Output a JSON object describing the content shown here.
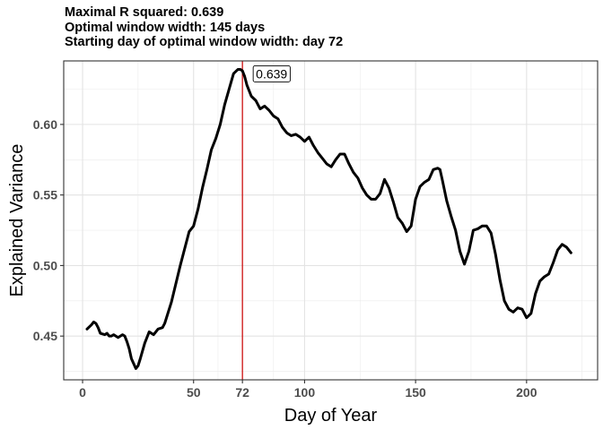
{
  "chart_data": {
    "type": "line",
    "title_lines": [
      "Maximal R squared: 0.639",
      "Optimal window width: 145 days",
      "Starting day of optimal window width:  day 72"
    ],
    "xlabel": "Day of Year",
    "ylabel": "Explained Variance",
    "xlim": [
      -8.5,
      232
    ],
    "ylim": [
      0.419,
      0.645
    ],
    "x_ticks": [
      {
        "value": 0,
        "label": "0"
      },
      {
        "value": 50,
        "label": "50"
      },
      {
        "value": 72,
        "label": "72"
      },
      {
        "value": 100,
        "label": "100"
      },
      {
        "value": 150,
        "label": "150"
      },
      {
        "value": 200,
        "label": "200"
      }
    ],
    "y_ticks": [
      {
        "value": 0.45,
        "label": "0.45"
      },
      {
        "value": 0.5,
        "label": "0.50"
      },
      {
        "value": 0.55,
        "label": "0.55"
      },
      {
        "value": 0.6,
        "label": "0.60"
      }
    ],
    "grid": true,
    "vline": {
      "x": 72,
      "color": "#cc0000"
    },
    "annotation": {
      "x": 72,
      "y": 0.639,
      "text": "0.639"
    },
    "series": [
      {
        "color": "#000000",
        "x": [
          2,
          4,
          5,
          6,
          7,
          8,
          10,
          11,
          12,
          13,
          14,
          16,
          18,
          19,
          20,
          21,
          22,
          24,
          25,
          26,
          28,
          30,
          32,
          33,
          34,
          36,
          37,
          38,
          40,
          42,
          44,
          46,
          48,
          50,
          52,
          54,
          56,
          58,
          60,
          62,
          64,
          66,
          68,
          70,
          71,
          72,
          73,
          74,
          76,
          78,
          80,
          82,
          84,
          86,
          88,
          90,
          92,
          94,
          96,
          98,
          100,
          102,
          104,
          106,
          108,
          110,
          112,
          114,
          116,
          118,
          120,
          122,
          124,
          126,
          128,
          130,
          132,
          134,
          136,
          138,
          140,
          142,
          144,
          146,
          148,
          150,
          152,
          154,
          156,
          158,
          160,
          161,
          162,
          164,
          166,
          168,
          170,
          172,
          174,
          176,
          178,
          180,
          182,
          184,
          186,
          188,
          190,
          192,
          194,
          196,
          198,
          200,
          202,
          204,
          206,
          208,
          210,
          212,
          214,
          216,
          218,
          220
        ],
        "values": [
          0.455,
          0.458,
          0.46,
          0.459,
          0.456,
          0.452,
          0.451,
          0.452,
          0.45,
          0.45,
          0.451,
          0.449,
          0.451,
          0.45,
          0.446,
          0.441,
          0.434,
          0.427,
          0.429,
          0.434,
          0.445,
          0.453,
          0.451,
          0.453,
          0.455,
          0.456,
          0.459,
          0.464,
          0.474,
          0.487,
          0.5,
          0.512,
          0.524,
          0.528,
          0.54,
          0.555,
          0.568,
          0.582,
          0.59,
          0.6,
          0.614,
          0.625,
          0.636,
          0.639,
          0.639,
          0.638,
          0.634,
          0.628,
          0.62,
          0.617,
          0.611,
          0.613,
          0.61,
          0.606,
          0.604,
          0.598,
          0.594,
          0.592,
          0.593,
          0.591,
          0.588,
          0.591,
          0.585,
          0.58,
          0.576,
          0.572,
          0.57,
          0.575,
          0.579,
          0.579,
          0.572,
          0.566,
          0.562,
          0.555,
          0.55,
          0.547,
          0.547,
          0.551,
          0.561,
          0.555,
          0.545,
          0.534,
          0.53,
          0.524,
          0.528,
          0.547,
          0.556,
          0.559,
          0.561,
          0.568,
          0.569,
          0.568,
          0.561,
          0.546,
          0.535,
          0.525,
          0.51,
          0.501,
          0.51,
          0.525,
          0.526,
          0.528,
          0.528,
          0.523,
          0.508,
          0.49,
          0.475,
          0.469,
          0.467,
          0.47,
          0.469,
          0.463,
          0.466,
          0.48,
          0.489,
          0.492,
          0.494,
          0.502,
          0.511,
          0.515,
          0.513,
          0.509
        ]
      }
    ]
  }
}
